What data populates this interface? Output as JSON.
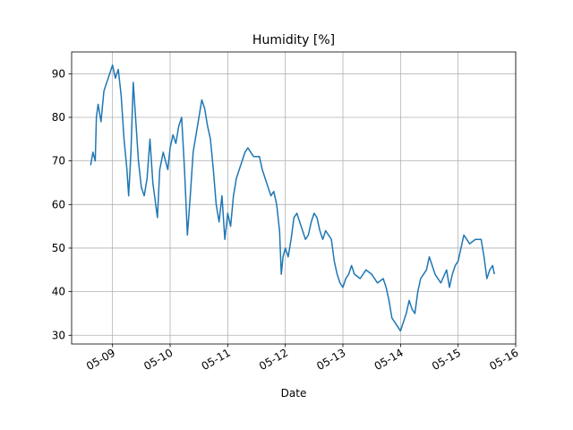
{
  "chart_data": {
    "type": "line",
    "title": "Humidity [%]",
    "x_label": "Date",
    "x": [
      8.62,
      8.66,
      8.7,
      8.72,
      8.75,
      8.8,
      8.85,
      8.9,
      8.95,
      9.0,
      9.05,
      9.1,
      9.15,
      9.2,
      9.25,
      9.28,
      9.32,
      9.36,
      9.4,
      9.45,
      9.5,
      9.55,
      9.6,
      9.65,
      9.7,
      9.75,
      9.78,
      9.82,
      9.88,
      9.92,
      9.96,
      10.0,
      10.05,
      10.1,
      10.15,
      10.2,
      10.25,
      10.3,
      10.35,
      10.4,
      10.45,
      10.5,
      10.55,
      10.6,
      10.65,
      10.7,
      10.75,
      10.8,
      10.85,
      10.9,
      10.95,
      11.0,
      11.05,
      11.1,
      11.15,
      11.2,
      11.25,
      11.3,
      11.35,
      11.4,
      11.45,
      11.55,
      11.6,
      11.7,
      11.75,
      11.8,
      11.85,
      11.9,
      11.93,
      11.96,
      12.0,
      12.05,
      12.1,
      12.15,
      12.2,
      12.25,
      12.3,
      12.35,
      12.4,
      12.45,
      12.5,
      12.55,
      12.6,
      12.65,
      12.7,
      12.75,
      12.8,
      12.85,
      12.9,
      12.95,
      13.0,
      13.05,
      13.1,
      13.15,
      13.2,
      13.3,
      13.4,
      13.5,
      13.6,
      13.7,
      13.75,
      13.8,
      13.85,
      13.9,
      13.95,
      14.0,
      14.05,
      14.1,
      14.15,
      14.2,
      14.25,
      14.3,
      14.35,
      14.4,
      14.45,
      14.5,
      14.55,
      14.6,
      14.7,
      14.8,
      14.85,
      14.9,
      14.95,
      15.0,
      15.05,
      15.1,
      15.15,
      15.2,
      15.3,
      15.4,
      15.45,
      15.5,
      15.55,
      15.6,
      15.63
    ],
    "series": [
      {
        "name": "Humidity",
        "color": "#1f77b4",
        "values": [
          69,
          72,
          70,
          80,
          83,
          79,
          86,
          88,
          90,
          92,
          89,
          91,
          85,
          75,
          68,
          62,
          72,
          88,
          80,
          70,
          64,
          62,
          66,
          75,
          65,
          60,
          57,
          68,
          72,
          70,
          68,
          73,
          76,
          74,
          78,
          80,
          68,
          53,
          62,
          72,
          76,
          80,
          84,
          82,
          78,
          75,
          68,
          60,
          56,
          62,
          52,
          58,
          55,
          62,
          66,
          68,
          70,
          72,
          73,
          72,
          71,
          71,
          68,
          64,
          62,
          63,
          60,
          54,
          44,
          48,
          50,
          48,
          52,
          57,
          58,
          56,
          54,
          52,
          53,
          56,
          58,
          57,
          54,
          52,
          54,
          53,
          52,
          47,
          44,
          42,
          41,
          43,
          44,
          46,
          44,
          43,
          45,
          44,
          42,
          43,
          41,
          38,
          34,
          33,
          32,
          31,
          33,
          35,
          38,
          36,
          35,
          40,
          43,
          44,
          45,
          48,
          46,
          44,
          42,
          45,
          41,
          44,
          46,
          47,
          50,
          53,
          52,
          51,
          52,
          52,
          48,
          43,
          45,
          46,
          44
        ]
      }
    ],
    "xlim": [
      8.29,
      16.0
    ],
    "xticks": [
      {
        "value": 9,
        "label": "05-09"
      },
      {
        "value": 10,
        "label": "05-10"
      },
      {
        "value": 11,
        "label": "05-11"
      },
      {
        "value": 12,
        "label": "05-12"
      },
      {
        "value": 13,
        "label": "05-13"
      },
      {
        "value": 14,
        "label": "05-14"
      },
      {
        "value": 15,
        "label": "05-15"
      },
      {
        "value": 16,
        "label": "05-16"
      }
    ],
    "ylim": [
      28,
      95
    ],
    "yticks": [
      30,
      40,
      50,
      60,
      70,
      80,
      90
    ],
    "grid": true
  }
}
